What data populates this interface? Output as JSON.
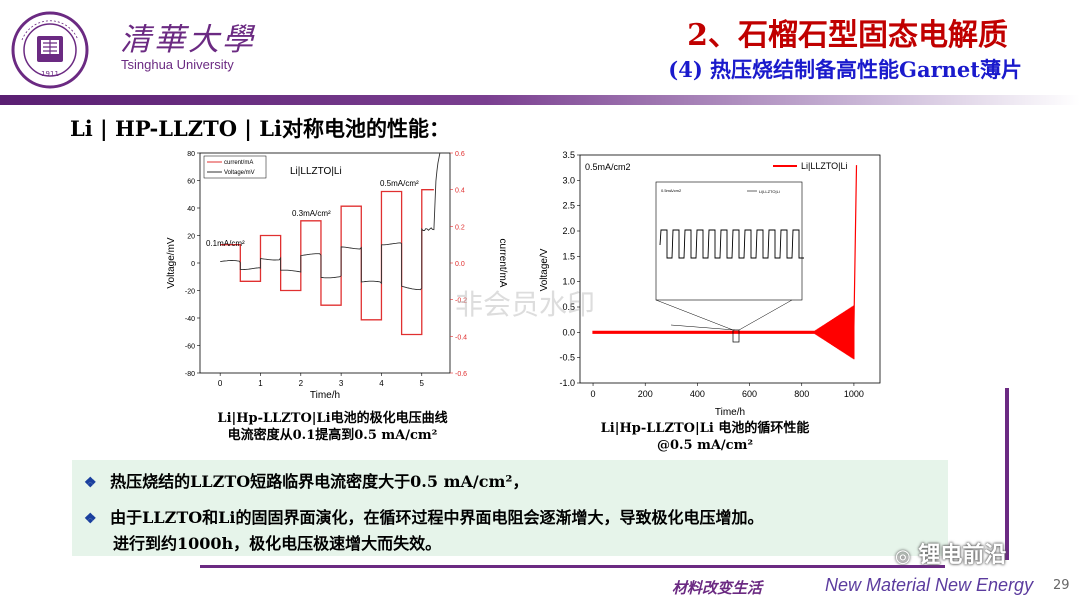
{
  "header": {
    "university_cn": "清華大學",
    "university_en": "Tsinghua University",
    "logo_text": "1911",
    "title": "2、石榴石型固态电解质",
    "subtitle": "(4) 热压烧结制备高性能Garnet薄片"
  },
  "section_heading": "Li | HP-LLZTO | Li对称电池的性能：",
  "figure_left": {
    "caption_line1": "Li|Hp-LLZTO|Li电池的极化电压曲线",
    "caption_line2": "电流密度从0.1提高到0.5 mA/cm²",
    "inner_title": "Li|LLZTO|Li",
    "legend": [
      "current/mA",
      "Voltage/mV"
    ],
    "annotations": [
      "0.1mA/cm²",
      "0.3mA/cm²",
      "0.5mA/cm²"
    ]
  },
  "figure_right": {
    "caption_line1": "Li|Hp-LLZTO|Li 电池的循环性能",
    "caption_line2": "@0.5  mA/cm²",
    "legend": "Li|LLZTO|Li",
    "annotation": "0.5mA/cm2",
    "inset_legend": "Li|LLZTO|Li",
    "inset_annotation": "0.5mA/cm2"
  },
  "chart_data": [
    {
      "type": "line",
      "xlabel": "Time/h",
      "ylabel": "Voltage/mV",
      "y2label": "current/mA",
      "xlim": [
        -0.5,
        5.7
      ],
      "ylim": [
        -80,
        80
      ],
      "y2lim": [
        -0.6,
        0.6
      ],
      "xticks": [
        "0",
        "1",
        "2",
        "3",
        "4",
        "5",
        "6"
      ],
      "yticks": [
        "-80",
        "-60",
        "-40",
        "-20",
        "0",
        "20",
        "40",
        "60",
        "80"
      ],
      "y2ticks": [
        "-0.6",
        "-0.4",
        "-0.2",
        "0.0",
        "0.2",
        "0.4",
        "0.6"
      ],
      "series": [
        {
          "name": "current/mA",
          "color": "#e03030",
          "x": [
            0.0,
            0.5,
            0.5,
            1.0,
            1.0,
            1.5,
            1.5,
            2.0,
            2.0,
            2.5,
            2.5,
            3.0,
            3.0,
            3.5,
            3.5,
            4.0,
            4.0,
            4.5,
            4.5,
            5.0,
            5.0,
            5.3
          ],
          "values": [
            0.1,
            0.1,
            -0.1,
            -0.1,
            0.15,
            0.15,
            -0.15,
            -0.15,
            0.23,
            0.23,
            -0.23,
            -0.23,
            0.31,
            0.31,
            -0.31,
            -0.31,
            0.39,
            0.39,
            -0.39,
            -0.39,
            0.4,
            0.4
          ]
        },
        {
          "name": "Voltage/mV",
          "color": "#333333",
          "x": [
            0.0,
            0.5,
            0.5,
            1.0,
            1.0,
            1.5,
            1.5,
            2.0,
            2.0,
            2.5,
            2.5,
            3.0,
            3.0,
            3.5,
            3.5,
            4.0,
            4.0,
            4.5,
            4.5,
            5.0,
            5.0,
            5.3,
            5.35,
            5.4,
            5.45
          ],
          "values": [
            1,
            1,
            -4,
            -4,
            3,
            3,
            -6,
            -6,
            6,
            6,
            -10,
            -10,
            11,
            11,
            -14,
            -14,
            14,
            14,
            -17,
            -19,
            24,
            25,
            60,
            72,
            80
          ]
        }
      ]
    },
    {
      "type": "line",
      "xlabel": "Time/h",
      "ylabel": "Voltage/V",
      "xlim": [
        -50,
        1100
      ],
      "ylim": [
        -1.0,
        3.5
      ],
      "xticks": [
        "0",
        "200",
        "400",
        "600",
        "800",
        "1000"
      ],
      "yticks": [
        "-1.0",
        "-0.5",
        "0.0",
        "0.5",
        "1.0",
        "1.5",
        "2.0",
        "2.5",
        "3.0",
        "3.5"
      ],
      "series": [
        {
          "name": "Li|LLZTO|Li",
          "color": "#ff0000",
          "x": [
            0,
            200,
            400,
            600,
            800,
            900,
            950,
            1000,
            1010
          ],
          "values": [
            0.0,
            0.0,
            0.0,
            0.0,
            0.0,
            0.02,
            0.04,
            0.1,
            3.3
          ]
        }
      ]
    }
  ],
  "bullets": [
    "热压烧结的LLZTO短路临界电流密度大于0.5 mA/cm²，",
    "由于LLZTO和Li的固固界面演化，在循环过程中界面电阻会逐渐增大，导致极化电压增加。",
    "进行到约1000h，极化电压极速增大而失效。"
  ],
  "footer": {
    "cn": "材料改变生活",
    "en": "New Material New Energy",
    "page": "29",
    "wechat_watermark": "锂电前沿"
  },
  "watermark": "非会员水印",
  "colors": {
    "brand_purple": "#6b2a82",
    "title_red": "#c00000",
    "subtitle_blue": "#1a1acc",
    "bullet_bg": "#e6f4ea"
  }
}
